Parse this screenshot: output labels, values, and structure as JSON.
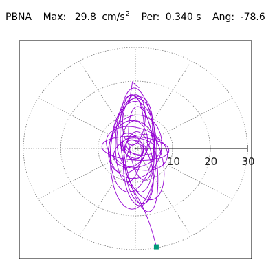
{
  "header": {
    "station": "PBNA",
    "max_label": "Max:",
    "max_value": "29.8",
    "max_unit": "cm/s",
    "max_unit_sup": "2",
    "per_label": "Per:",
    "per_value": "0.340 s",
    "ang_label": "Ang:",
    "ang_value": "-78.6"
  },
  "colors": {
    "trace": "#9400d3",
    "marker": "#00997a",
    "grid": "#777777",
    "frame": "#000000"
  },
  "chart_data": {
    "type": "polar-orbit",
    "radial_ticks": [
      "10",
      "20",
      "30"
    ],
    "radial_tick_values": [
      10,
      20,
      30
    ],
    "radial_max": 30,
    "spokes_deg": 30,
    "peak_point": {
      "x": 5.6,
      "y": -29.2
    },
    "orbit_loops": [
      {
        "cx": 0.5,
        "cy": 2.5,
        "rx": 4.5,
        "ry": 15.5,
        "rot": -4
      },
      {
        "cx": -0.8,
        "cy": 1.0,
        "rx": 5.8,
        "ry": 14.0,
        "rot": 6
      },
      {
        "cx": 1.2,
        "cy": -1.5,
        "rx": 4.2,
        "ry": 17.5,
        "rot": -9
      },
      {
        "cx": 0.0,
        "cy": 0.5,
        "rx": 7.0,
        "ry": 9.5,
        "rot": 12
      },
      {
        "cx": -1.5,
        "cy": 3.0,
        "rx": 3.8,
        "ry": 13.0,
        "rot": 3
      },
      {
        "cx": 2.0,
        "cy": -3.5,
        "rx": 5.2,
        "ry": 12.0,
        "rot": -14
      },
      {
        "cx": 0.4,
        "cy": 0.0,
        "rx": 8.5,
        "ry": 6.0,
        "rot": 20
      },
      {
        "cx": -0.5,
        "cy": -2.0,
        "rx": 6.2,
        "ry": 16.0,
        "rot": 2
      },
      {
        "cx": 1.5,
        "cy": 1.5,
        "rx": 3.2,
        "ry": 11.0,
        "rot": -6
      },
      {
        "cx": -2.0,
        "cy": 0.5,
        "rx": 5.0,
        "ry": 8.0,
        "rot": 18
      },
      {
        "cx": 0.8,
        "cy": -6.0,
        "rx": 4.0,
        "ry": 11.0,
        "rot": -3
      },
      {
        "cx": -0.2,
        "cy": 5.0,
        "rx": 4.6,
        "ry": 10.5,
        "rot": 9
      },
      {
        "cx": 0.0,
        "cy": 0.0,
        "rx": 9.0,
        "ry": 3.5,
        "rot": 4
      },
      {
        "cx": 0.3,
        "cy": 0.2,
        "rx": 3.0,
        "ry": 2.0,
        "rot": 30
      },
      {
        "cx": -0.6,
        "cy": -0.4,
        "rx": 2.2,
        "ry": 3.0,
        "rot": -25
      },
      {
        "cx": 0.9,
        "cy": 0.6,
        "rx": 4.5,
        "ry": 2.4,
        "rot": 10
      },
      {
        "cx": -1.0,
        "cy": 0.8,
        "rx": 2.6,
        "ry": 4.2,
        "rot": -40
      },
      {
        "cx": 1.1,
        "cy": -7.5,
        "rx": 3.6,
        "ry": 9.0,
        "rot": -7
      },
      {
        "cx": -0.4,
        "cy": 8.5,
        "rx": 3.0,
        "ry": 7.5,
        "rot": 5
      },
      {
        "cx": 0.6,
        "cy": -0.8,
        "rx": 6.6,
        "ry": 4.6,
        "rot": -18
      }
    ]
  }
}
